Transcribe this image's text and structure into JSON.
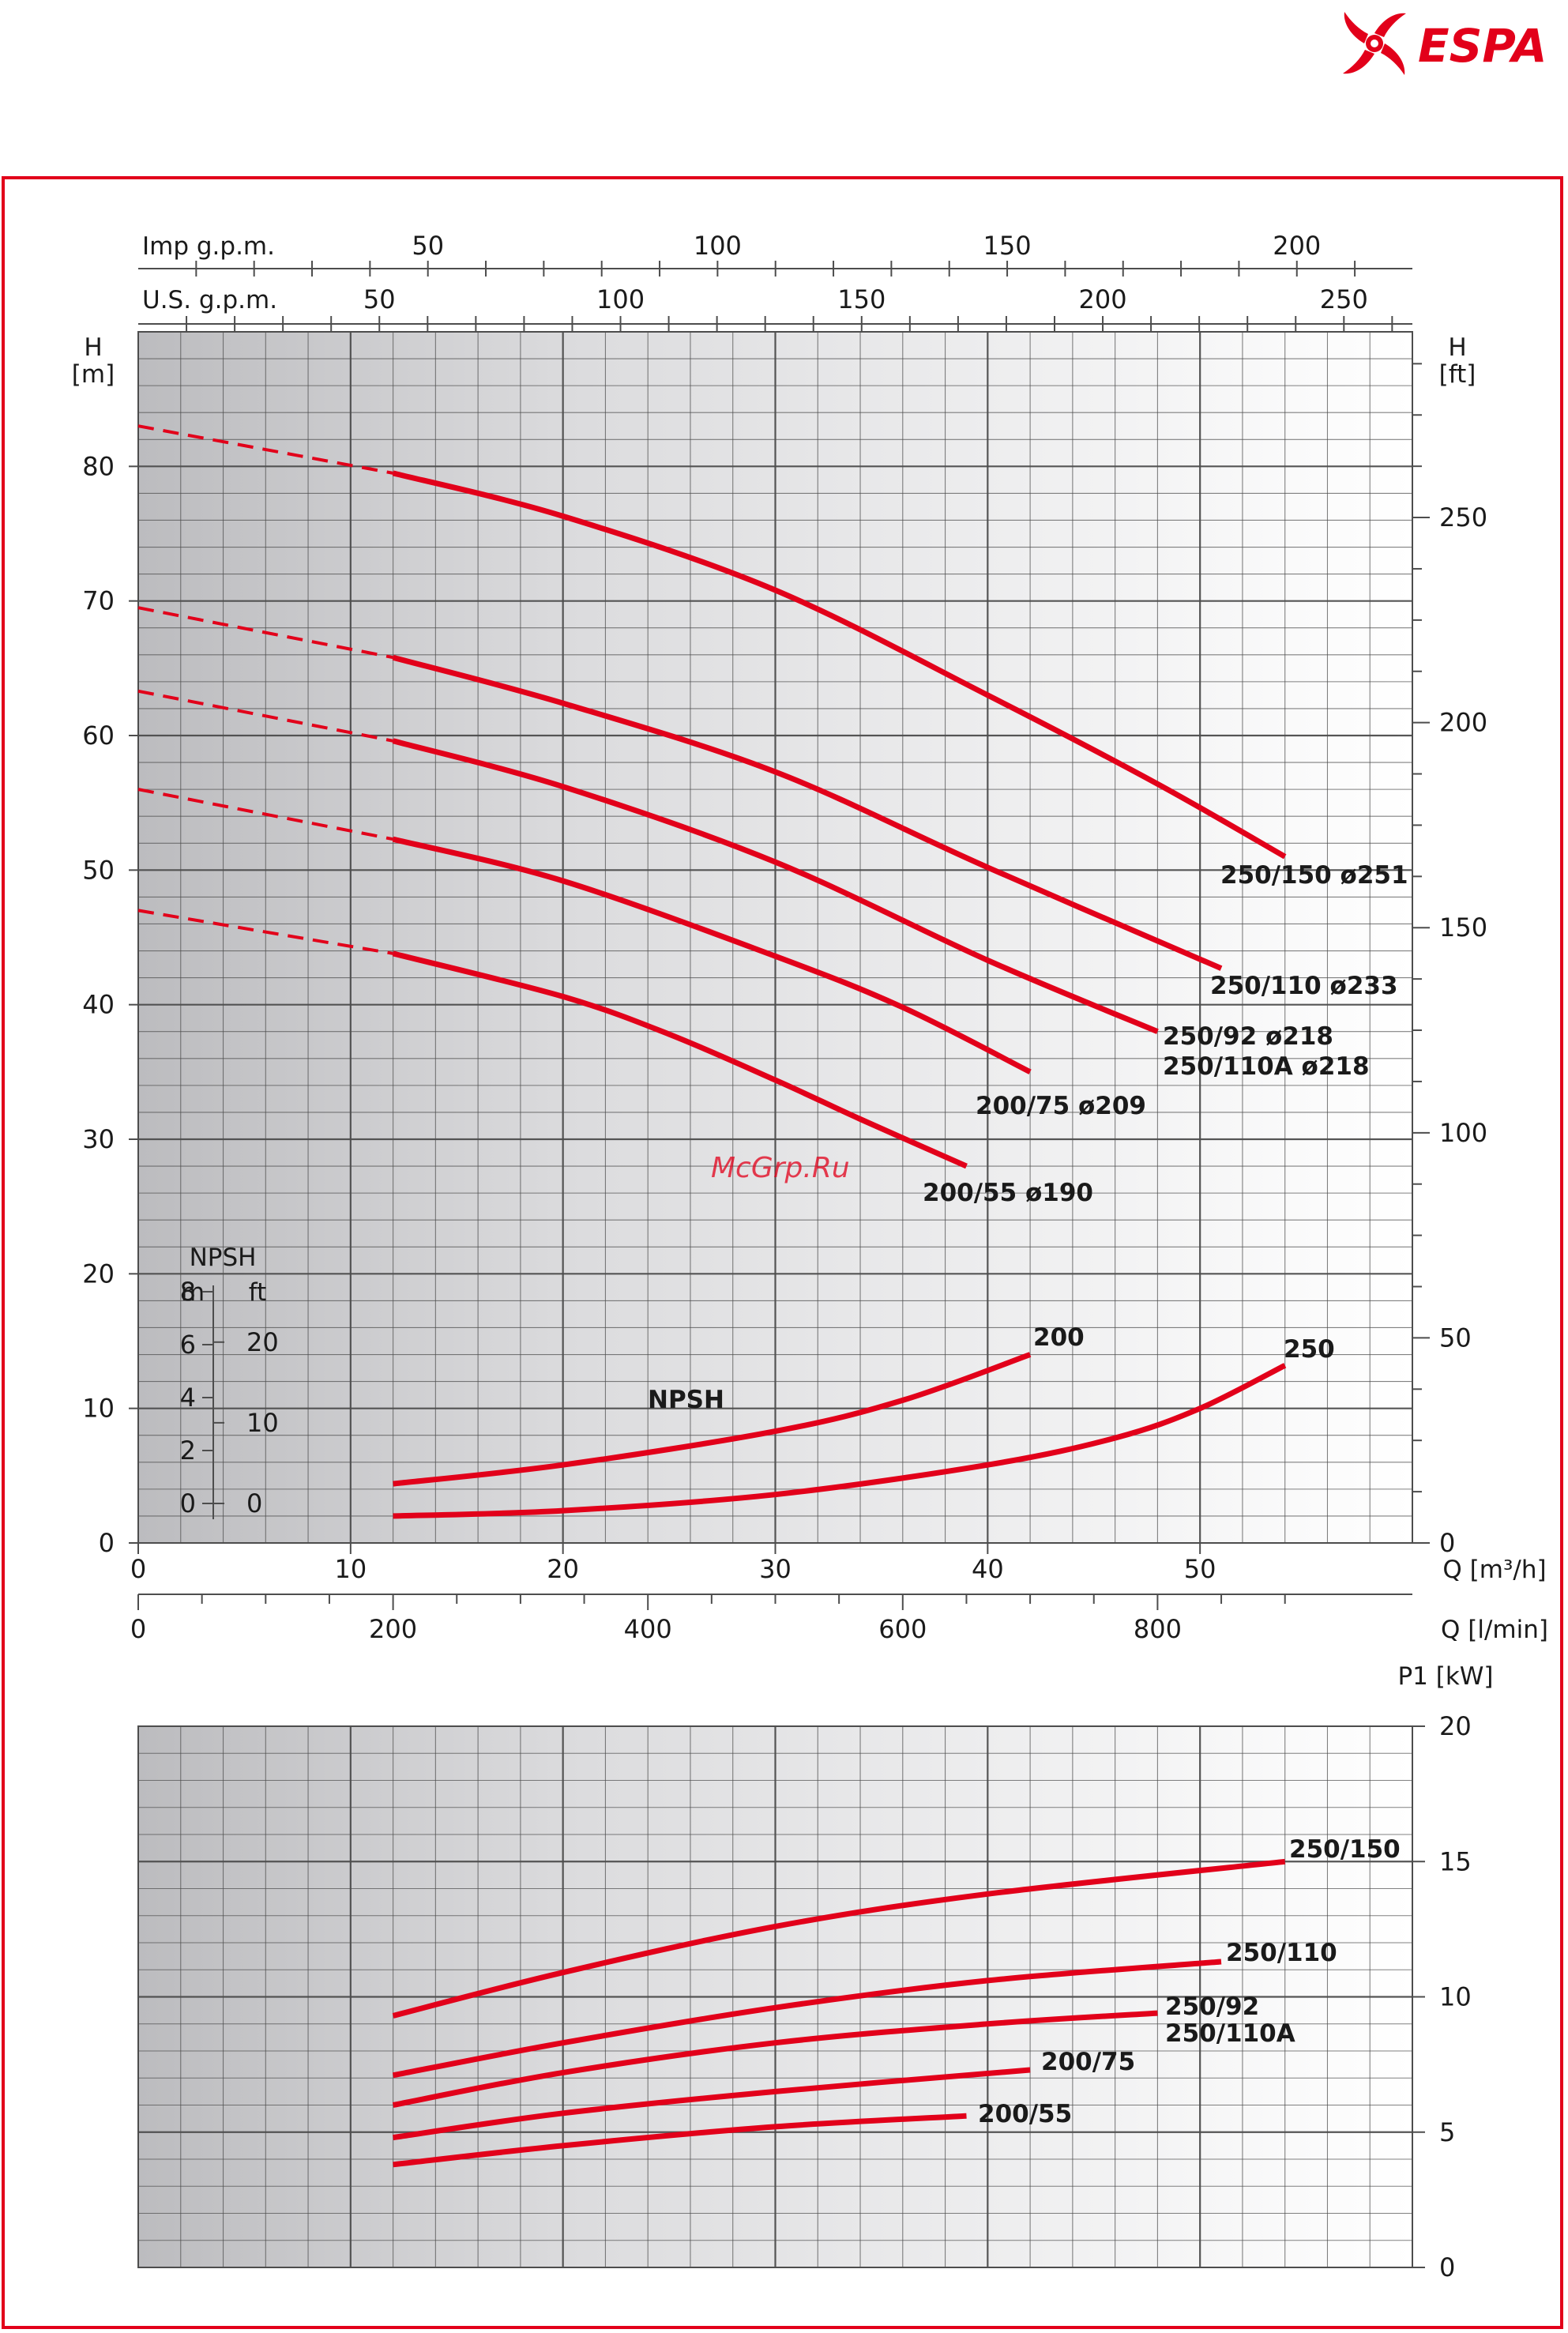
{
  "brand": {
    "name": "ESPA",
    "color": "#e2001a"
  },
  "watermark": "McGrp.Ru",
  "colors": {
    "curve": "#e2001a",
    "grid": "#4d4d4d",
    "frame": "#e2001a"
  },
  "chart_data": [
    {
      "type": "line",
      "name_key": "head",
      "xlim": [
        0,
        60
      ],
      "ylim": [
        0,
        90
      ],
      "axes": {
        "y_left_title": [
          "H",
          "[m]"
        ],
        "y_right_title": [
          "H",
          "[ft]"
        ],
        "x_bottom_title": "Q [m³/h]",
        "x_lmin_title": "Q [l/min]",
        "x_top1_title": "Imp g.p.m.",
        "x_top2_title": "U.S. g.p.m.",
        "y_left_ticks": [
          0,
          10,
          20,
          30,
          40,
          50,
          60,
          70,
          80
        ],
        "y_right_ticks": [
          0,
          50,
          100,
          150,
          200,
          250
        ],
        "x_ticks": [
          0,
          10,
          20,
          30,
          40,
          50
        ],
        "lmin_ticks": [
          0,
          200,
          400,
          600,
          800
        ],
        "imp_ticks": [
          50,
          100,
          150,
          200
        ],
        "us_ticks": [
          50,
          100,
          150,
          200,
          250
        ]
      },
      "series": [
        {
          "name": "250/150 ø251",
          "dashed": [
            [
              0,
              83
            ],
            [
              12,
              79.5
            ]
          ],
          "points": [
            [
              12,
              79.5
            ],
            [
              20,
              76.3
            ],
            [
              30,
              70.8
            ],
            [
              40,
              63
            ],
            [
              48,
              56.4
            ],
            [
              54,
              51
            ]
          ]
        },
        {
          "name": "250/110 ø233",
          "dashed": [
            [
              0,
              69.5
            ],
            [
              12,
              65.8
            ]
          ],
          "points": [
            [
              12,
              65.8
            ],
            [
              20,
              62.4
            ],
            [
              30,
              57.3
            ],
            [
              40,
              50.2
            ],
            [
              51,
              42.7
            ]
          ]
        },
        {
          "name": "250/92 ø218",
          "name2": "250/110A ø218",
          "dashed": [
            [
              0,
              63.3
            ],
            [
              12,
              59.6
            ]
          ],
          "points": [
            [
              12,
              59.6
            ],
            [
              20,
              56.2
            ],
            [
              30,
              50.6
            ],
            [
              40,
              43.3
            ],
            [
              48,
              38
            ]
          ]
        },
        {
          "name": "200/75 ø209",
          "dashed": [
            [
              0,
              56
            ],
            [
              12,
              52.3
            ]
          ],
          "points": [
            [
              12,
              52.3
            ],
            [
              20,
              49.2
            ],
            [
              30,
              43.6
            ],
            [
              36,
              39.8
            ],
            [
              42,
              35
            ]
          ]
        },
        {
          "name": "200/55 ø190",
          "dashed": [
            [
              0,
              47
            ],
            [
              12,
              43.8
            ]
          ],
          "points": [
            [
              12,
              43.8
            ],
            [
              20,
              40.6
            ],
            [
              25,
              37.8
            ],
            [
              30,
              34.4
            ],
            [
              34,
              31.5
            ],
            [
              39,
              28
            ]
          ]
        }
      ],
      "npsh": {
        "title": "NPSH",
        "label": "NPSH",
        "unit_m": "m",
        "unit_ft": "ft",
        "m_ticks": [
          0,
          2,
          4,
          6,
          8
        ],
        "ft_ticks": [
          0,
          10,
          20
        ],
        "series": [
          {
            "name": "200",
            "points": [
              [
                12,
                4.4
              ],
              [
                20,
                5.8
              ],
              [
                30,
                8.3
              ],
              [
                36,
                10.6
              ],
              [
                42,
                14
              ]
            ]
          },
          {
            "name": "250",
            "points": [
              [
                12,
                2
              ],
              [
                20,
                2.4
              ],
              [
                30,
                3.6
              ],
              [
                40,
                5.8
              ],
              [
                46,
                7.8
              ],
              [
                50,
                10
              ],
              [
                54,
                13.2
              ]
            ]
          }
        ]
      }
    },
    {
      "type": "line",
      "name_key": "power",
      "xlim": [
        0,
        60
      ],
      "ylim": [
        0,
        20
      ],
      "axes": {
        "y_right_title": "P1 [kW]",
        "y_right_ticks": [
          0,
          5,
          10,
          15,
          20
        ]
      },
      "series": [
        {
          "name": "250/150",
          "points": [
            [
              12,
              9.3
            ],
            [
              20,
              10.9
            ],
            [
              30,
              12.6
            ],
            [
              40,
              13.8
            ],
            [
              54,
              15
            ]
          ]
        },
        {
          "name": "250/110",
          "points": [
            [
              12,
              7.1
            ],
            [
              20,
              8.3
            ],
            [
              30,
              9.6
            ],
            [
              40,
              10.6
            ],
            [
              51,
              11.3
            ]
          ]
        },
        {
          "name": "250/92",
          "name2": "250/110A",
          "points": [
            [
              12,
              6
            ],
            [
              20,
              7.2
            ],
            [
              30,
              8.3
            ],
            [
              40,
              9
            ],
            [
              48,
              9.4
            ]
          ]
        },
        {
          "name": "200/75",
          "points": [
            [
              12,
              4.8
            ],
            [
              20,
              5.7
            ],
            [
              30,
              6.5
            ],
            [
              42,
              7.3
            ]
          ]
        },
        {
          "name": "200/55",
          "points": [
            [
              12,
              3.8
            ],
            [
              20,
              4.5
            ],
            [
              30,
              5.2
            ],
            [
              39,
              5.6
            ]
          ]
        }
      ]
    }
  ]
}
